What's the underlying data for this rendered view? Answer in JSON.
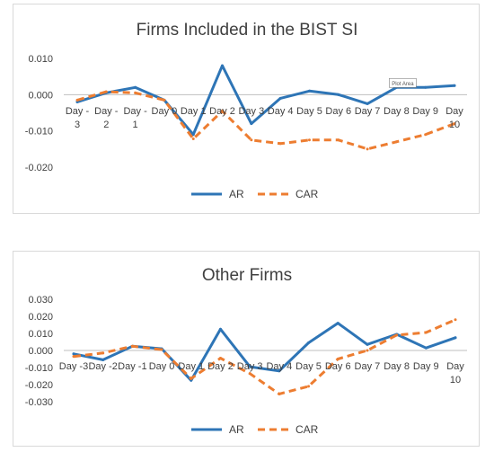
{
  "colors": {
    "ar": "#2e75b6",
    "car": "#ed7d31",
    "zero_line": "#bfbfbf",
    "text": "#404040",
    "border": "#d9d9d9"
  },
  "chart_data": [
    {
      "type": "line",
      "title": "Firms Included in the BIST SI",
      "categories": [
        [
          "Day -",
          "3"
        ],
        [
          "Day -",
          "2"
        ],
        [
          "Day -",
          "1"
        ],
        [
          "Day 0"
        ],
        [
          "Day 1"
        ],
        [
          "Day 2"
        ],
        [
          "Day 3"
        ],
        [
          "Day 4"
        ],
        [
          "Day 5"
        ],
        [
          "Day 6"
        ],
        [
          "Day 7"
        ],
        [
          "Day 8"
        ],
        [
          "Day 9"
        ],
        [
          "Day",
          "10"
        ]
      ],
      "y_ticks": [
        "0.010",
        "0.000",
        "-0.010",
        "-0.020"
      ],
      "ylim": [
        -0.02,
        0.01
      ],
      "series": [
        {
          "name": "AR",
          "style": "solid",
          "values": [
            -0.002,
            0.0005,
            0.002,
            -0.0015,
            -0.011,
            0.008,
            -0.008,
            -0.001,
            0.001,
            0.0,
            -0.0025,
            0.002,
            0.002,
            0.0025
          ]
        },
        {
          "name": "CAR",
          "style": "dashed",
          "values": [
            -0.0015,
            0.0008,
            0.0005,
            -0.0015,
            -0.0122,
            -0.0045,
            -0.0125,
            -0.0135,
            -0.0125,
            -0.0125,
            -0.015,
            -0.013,
            -0.011,
            -0.008
          ]
        }
      ],
      "legend": "bottom",
      "annotation": "Plot Area"
    },
    {
      "type": "line",
      "title": "Other Firms",
      "categories": [
        [
          "Day -3"
        ],
        [
          "Day -2"
        ],
        [
          "Day -1"
        ],
        [
          "Day 0"
        ],
        [
          "Day 1"
        ],
        [
          "Day 2"
        ],
        [
          "Day 3"
        ],
        [
          "Day 4"
        ],
        [
          "Day 5"
        ],
        [
          "Day 6"
        ],
        [
          "Day 7"
        ],
        [
          "Day 8"
        ],
        [
          "Day 9"
        ],
        [
          "Day",
          "10"
        ]
      ],
      "y_ticks": [
        "0.030",
        "0.020",
        "0.010",
        "0.000",
        "-0.010",
        "-0.020",
        "-0.030"
      ],
      "ylim": [
        -0.03,
        0.03
      ],
      "series": [
        {
          "name": "AR",
          "style": "solid",
          "values": [
            -0.002,
            -0.0055,
            0.0025,
            0.001,
            -0.0175,
            0.0125,
            -0.0095,
            -0.012,
            0.0045,
            0.016,
            0.0035,
            0.0095,
            0.0015,
            0.0075
          ]
        },
        {
          "name": "CAR",
          "style": "dashed",
          "values": [
            -0.0035,
            -0.0015,
            0.0025,
            0.0005,
            -0.0165,
            -0.0045,
            -0.0135,
            -0.0255,
            -0.021,
            -0.005,
            0.0,
            0.009,
            0.0105,
            0.018
          ]
        }
      ],
      "legend": "bottom"
    }
  ]
}
